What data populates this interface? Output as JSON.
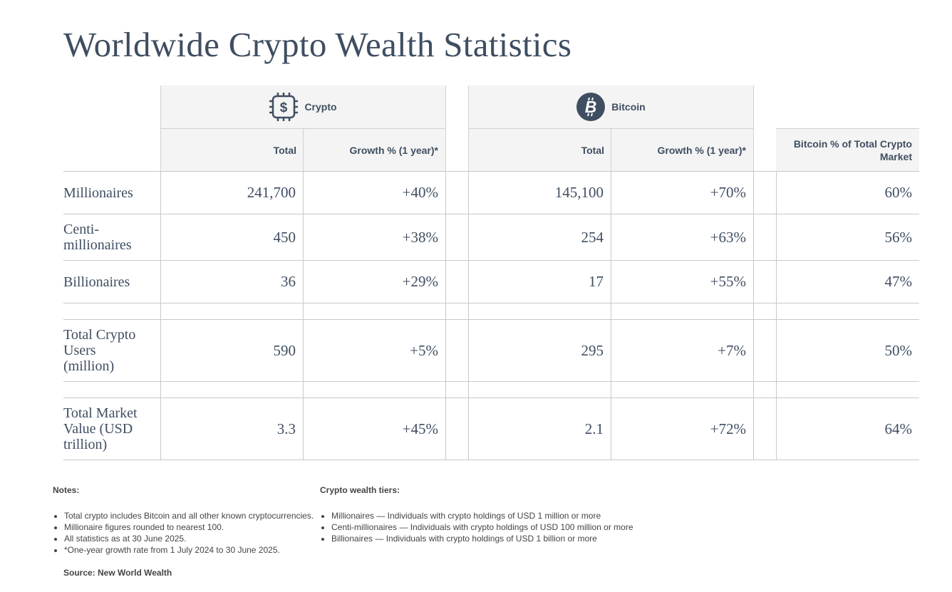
{
  "title": "Worldwide Crypto Wealth Statistics",
  "groups": {
    "crypto": {
      "label": "Crypto",
      "icon": "crypto-chip-icon"
    },
    "bitcoin": {
      "label": "Bitcoin",
      "icon": "bitcoin-icon"
    }
  },
  "subheaders": {
    "crypto_total": "Total",
    "crypto_growth": "Growth % (1 year)*",
    "bitcoin_total": "Total",
    "bitcoin_growth": "Growth % (1 year)*",
    "bitcoin_share": "Bitcoin % of Total Crypto Market"
  },
  "rows": [
    {
      "label": "Millionaires",
      "crypto_total": "241,700",
      "crypto_growth": "+40%",
      "bitcoin_total": "145,100",
      "bitcoin_growth": "+70%",
      "bitcoin_share": "60%"
    },
    {
      "label": "Centi-\nmillionaires",
      "crypto_total": "450",
      "crypto_growth": "+38%",
      "bitcoin_total": "254",
      "bitcoin_growth": "+63%",
      "bitcoin_share": "56%"
    },
    {
      "label": "Billionaires",
      "crypto_total": "36",
      "crypto_growth": "+29%",
      "bitcoin_total": "17",
      "bitcoin_growth": "+55%",
      "bitcoin_share": "47%"
    },
    {
      "label": "Total Crypto\nUsers\n(million)",
      "crypto_total": "590",
      "crypto_growth": "+5%",
      "bitcoin_total": "295",
      "bitcoin_growth": "+7%",
      "bitcoin_share": "50%"
    },
    {
      "label": "Total Market\nValue (USD\ntrillion)",
      "crypto_total": "3.3",
      "crypto_growth": "+45%",
      "bitcoin_total": "2.1",
      "bitcoin_growth": "+72%",
      "bitcoin_share": "64%"
    }
  ],
  "notes": {
    "heading": "Notes:",
    "items": [
      "Total crypto includes Bitcoin and all other known cryptocurrencies.",
      "Millionaire figures rounded to nearest 100.",
      "All statistics as at 30 June 2025.",
      "*One-year growth rate from 1 July 2024 to 30 June 2025."
    ]
  },
  "tiers": {
    "heading": "Crypto wealth tiers:",
    "items": [
      "Millionaires — Individuals with crypto holdings of USD 1 million or more",
      "Centi-millionaires — Individuals with crypto holdings of USD 100 million or more",
      "Billionaires — Individuals with crypto holdings of USD 1 billion or more"
    ]
  },
  "source": "Source: New World Wealth",
  "colors": {
    "icon_fill": "#3f4e61",
    "header_bg": "#f4f4f4",
    "text": "#3f4e61"
  }
}
